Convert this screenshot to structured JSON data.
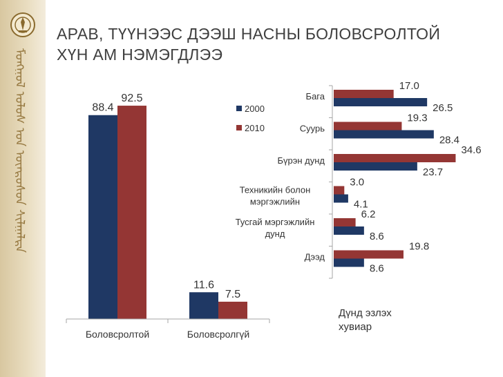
{
  "slide": {
    "title_line1": "АРАВ, ТҮҮНЭЭС ДЭЭШ НАСНЫ БОЛОВСРОЛТОЙ",
    "title_line2": "ХҮН АМ НЭМЭГДЛЭЭ"
  },
  "colors": {
    "series_2000": "#1f3864",
    "series_2010": "#943634",
    "sidebar": "#e0d2b0",
    "sidebar_ornament": "#8a6a2e"
  },
  "icons": {
    "emblem": "state-emblem-icon",
    "sidebar": "mongolian-script-ornament"
  },
  "chart_data": [
    {
      "type": "bar",
      "categories": [
        "Боловсролтой",
        "Боловсролгүй"
      ],
      "series": [
        {
          "name": "2000",
          "values": [
            88.4,
            11.6
          ]
        },
        {
          "name": "2010",
          "values": [
            92.5,
            7.5
          ]
        }
      ],
      "ylim": [
        0,
        100
      ],
      "grid": false,
      "legend": {
        "placement": "right",
        "entries": [
          "2000",
          "2010"
        ]
      }
    },
    {
      "type": "bar",
      "orientation": "horizontal",
      "categories": [
        "Бага",
        "Суурь",
        "Бүрэн дунд",
        "Техникийн болон мэргэжлийн",
        "Тусгай мэргэжлийн дунд",
        "Дээд"
      ],
      "category_lines": [
        [
          "Бага"
        ],
        [
          "Суурь"
        ],
        [
          "Бүрэн дунд"
        ],
        [
          "Техникийн болон",
          "мэргэжлийн"
        ],
        [
          "Тусгай мэргэжлийн",
          "дунд"
        ],
        [
          "Дээд"
        ]
      ],
      "series": [
        {
          "name": "2000",
          "values": [
            26.5,
            28.4,
            23.7,
            4.1,
            8.6,
            8.6
          ]
        },
        {
          "name": "2010",
          "values": [
            17.0,
            19.3,
            34.6,
            3.0,
            6.2,
            19.8
          ]
        }
      ],
      "value_labels": {
        "2000": [
          "26.5",
          "28.4",
          "23.7",
          "4.1",
          "8.6",
          "8.6"
        ],
        "2010": [
          "17.0",
          "19.3",
          "34.6",
          "3.0",
          "6.2",
          "19.8"
        ]
      },
      "xlim": [
        0,
        35
      ],
      "grid": false,
      "annotation_lines": [
        "Дүнд эзлэх",
        "хувиар"
      ]
    }
  ]
}
